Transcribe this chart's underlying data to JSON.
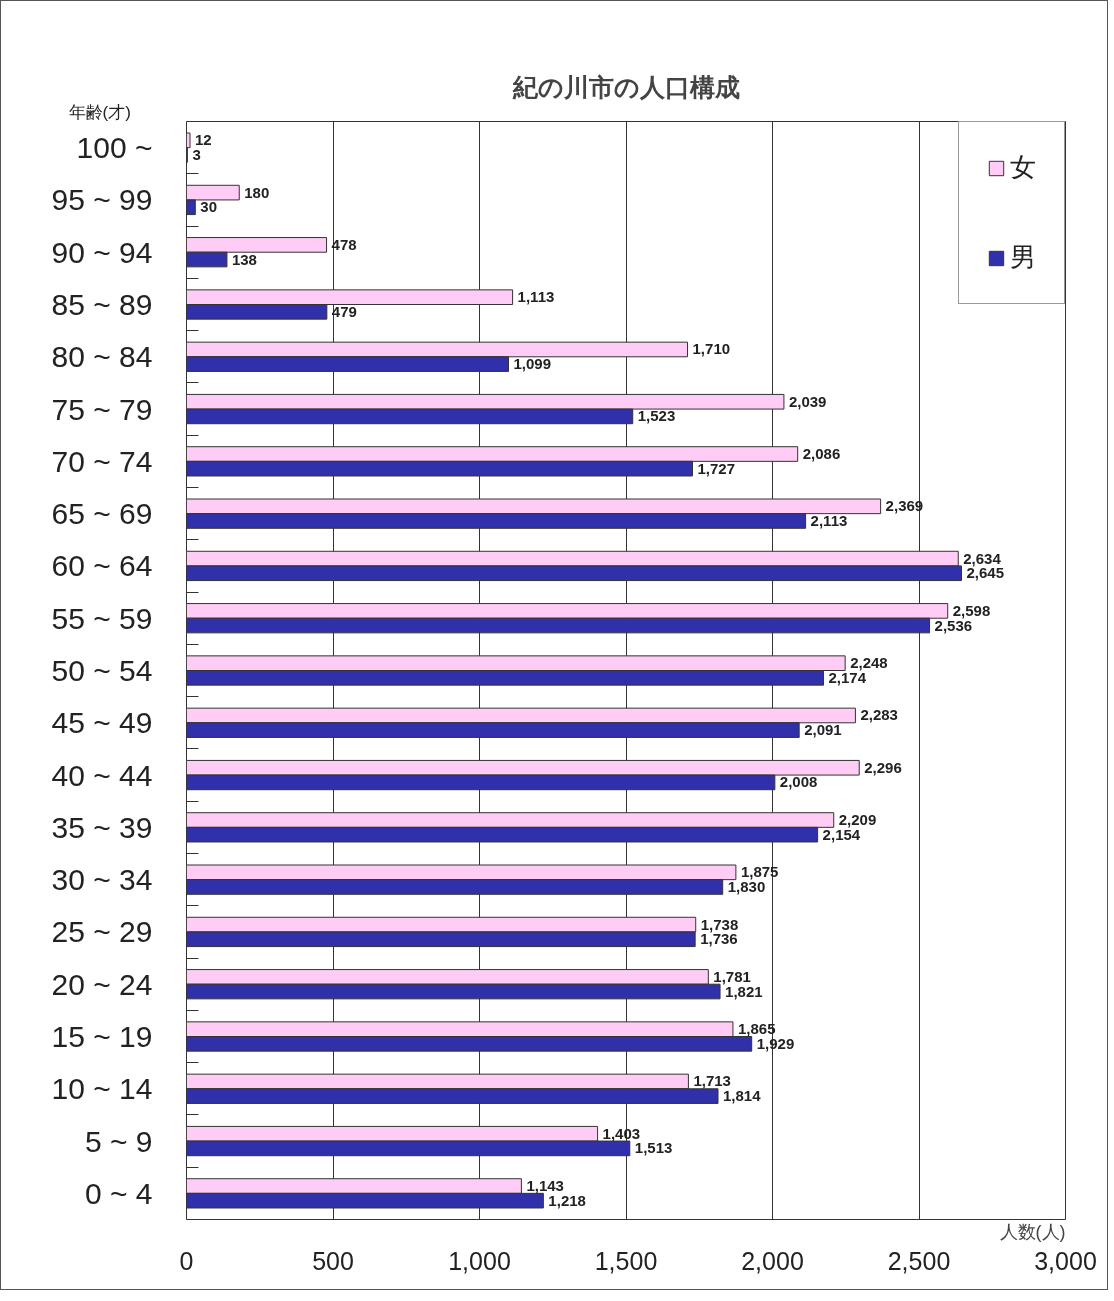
{
  "chart_data": {
    "type": "bar",
    "orientation": "horizontal",
    "title": "紀の川市の人口構成",
    "ylabel": "年齢(才)",
    "xlabel": "人数(人)",
    "categories": [
      "100 ~",
      "95 ~ 99",
      "90 ~ 94",
      "85 ~ 89",
      "80 ~ 84",
      "75 ~ 79",
      "70 ~ 74",
      "65 ~ 69",
      "60 ~ 64",
      "55 ~ 59",
      "50 ~ 54",
      "45 ~ 49",
      "40 ~ 44",
      "35 ~ 39",
      "30 ~ 34",
      "25 ~ 29",
      "20 ~ 24",
      "15 ~ 19",
      "10 ~ 14",
      "5 ~ 9",
      "0 ~ 4"
    ],
    "series": [
      {
        "name": "女",
        "color": "#ffccf5",
        "values": [
          12,
          180,
          478,
          1113,
          1710,
          2039,
          2086,
          2369,
          2634,
          2598,
          2248,
          2283,
          2296,
          2209,
          1875,
          1738,
          1781,
          1865,
          1713,
          1403,
          1143
        ],
        "value_labels": [
          "12",
          "180",
          "478",
          "1,113",
          "1,710",
          "2,039",
          "2,086",
          "2,369",
          "2,634",
          "2,598",
          "2,248",
          "2,283",
          "2,296",
          "2,209",
          "1,875",
          "1,738",
          "1,781",
          "1,865",
          "1,713",
          "1,403",
          "1,143"
        ]
      },
      {
        "name": "男",
        "color": "#3030aa",
        "values": [
          3,
          30,
          138,
          479,
          1099,
          1523,
          1727,
          2113,
          2645,
          2536,
          2174,
          2091,
          2008,
          2154,
          1830,
          1736,
          1821,
          1929,
          1814,
          1513,
          1218
        ],
        "value_labels": [
          "3",
          "30",
          "138",
          "479",
          "1,099",
          "1,523",
          "1,727",
          "2,113",
          "2,645",
          "2,536",
          "2,174",
          "2,091",
          "2,008",
          "2,154",
          "1,830",
          "1,736",
          "1,821",
          "1,929",
          "1,814",
          "1,513",
          "1,218"
        ]
      }
    ],
    "xlim": [
      0,
      3000
    ],
    "xticks": [
      0,
      500,
      {
        "value": 1000,
        "label": "1,000"
      },
      {
        "value": 1500,
        "label": "1,500"
      },
      {
        "value": 2000,
        "label": "2,000"
      },
      {
        "value": 2500,
        "label": "2,500"
      },
      {
        "value": 3000,
        "label": "3,000"
      }
    ],
    "grid": "x",
    "legend": "top right"
  }
}
